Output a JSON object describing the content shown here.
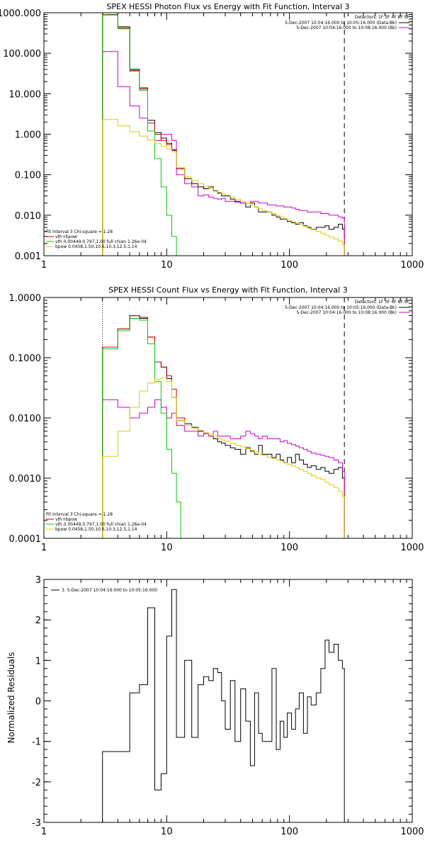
{
  "colors": {
    "data": "#000000",
    "bk": "#cc00cc",
    "total": "#cc0000",
    "vth": "#00cc00",
    "bpow": "#ddcc00",
    "dotted": "#000000"
  },
  "chart_data": [
    {
      "type": "line",
      "title": "SPEX HESSI Photon Flux vs Energy with Fit Function, Interval 3",
      "xlabel": "",
      "ylabel": "",
      "xscale": "log",
      "yscale": "log",
      "xlim": [
        1,
        1000
      ],
      "ylim": [
        0.001,
        1000
      ],
      "xticks": [
        "1",
        "10",
        "100",
        "1000"
      ],
      "yticks": [
        "0.001",
        "0.010",
        "0.100",
        "1.000",
        "10.000",
        "100.000",
        "1000.000"
      ],
      "detectors": "Detectors: 1F 3F 4F 8F 9F",
      "legend_right": [
        "5-Dec-2007 10:04:16.000 to 10:05:16.000 (Data-Bk)",
        "5-Dec-2007 10:04:16.000 to 10:08:16.000 (Bk)"
      ],
      "legend_left": [
        "Fit Interval 3   Chi-square = 1.28",
        "vth+bpow",
        "vth 0.00449,0.797,1.00  full chian 1.26e-04",
        "bpow 0.0458,1.50,10.6,10.3,12.5,1.14"
      ],
      "vline_dotted": 3,
      "vline_dashed": 280,
      "series": [
        {
          "name": "Data-Bk",
          "color": "data",
          "edges": [
            3,
            4,
            5,
            6,
            7,
            8,
            9,
            10,
            11,
            12,
            14,
            16,
            18,
            20,
            22,
            24,
            26,
            28,
            30,
            33,
            36,
            40,
            44,
            48,
            52,
            56,
            60,
            66,
            72,
            78,
            84,
            90,
            96,
            104,
            112,
            120,
            130,
            140,
            150,
            165,
            180,
            195,
            210,
            230,
            250,
            270,
            280
          ],
          "values": [
            900,
            450,
            40,
            14,
            2.2,
            1.1,
            0.8,
            0.6,
            0.4,
            0.14,
            0.08,
            0.06,
            0.05,
            0.045,
            0.05,
            0.04,
            0.035,
            0.03,
            0.03,
            0.025,
            0.022,
            0.02,
            0.016,
            0.02,
            0.016,
            0.012,
            0.012,
            0.012,
            0.01,
            0.009,
            0.008,
            0.008,
            0.007,
            0.0065,
            0.006,
            0.0065,
            0.0055,
            0.005,
            0.0045,
            0.005,
            0.005,
            0.0055,
            0.0045,
            0.005,
            0.006,
            0.0045
          ]
        },
        {
          "name": "Bk",
          "color": "bk",
          "edges": [
            3,
            4,
            5,
            6,
            7,
            8,
            9,
            10,
            11,
            12,
            14,
            16,
            18,
            20,
            22,
            24,
            26,
            28,
            30,
            33,
            36,
            40,
            44,
            48,
            52,
            56,
            60,
            66,
            72,
            78,
            84,
            90,
            96,
            104,
            112,
            120,
            130,
            140,
            150,
            165,
            180,
            195,
            210,
            230,
            250,
            270,
            280
          ],
          "values": [
            110,
            15,
            5,
            2.5,
            1.2,
            0.7,
            1,
            1,
            0.7,
            0.1,
            0.06,
            0.05,
            0.03,
            0.032,
            0.028,
            0.026,
            0.025,
            0.026,
            0.022,
            0.022,
            0.021,
            0.02,
            0.02,
            0.022,
            0.022,
            0.02,
            0.02,
            0.018,
            0.018,
            0.017,
            0.017,
            0.016,
            0.016,
            0.015,
            0.014,
            0.013,
            0.013,
            0.012,
            0.012,
            0.012,
            0.011,
            0.011,
            0.01,
            0.01,
            0.009,
            0.0085
          ]
        },
        {
          "name": "vth+bpow",
          "color": "total",
          "edges": [
            3,
            4,
            5,
            6,
            7,
            8,
            9,
            10,
            11,
            12,
            14
          ],
          "values": [
            900,
            420,
            38,
            13,
            1.9,
            1.0,
            0.7,
            0.55,
            0.42,
            0.14,
            0.08
          ]
        },
        {
          "name": "vth",
          "color": "vth",
          "edges": [
            3,
            4,
            5,
            6,
            7,
            8,
            9,
            10,
            11,
            12
          ],
          "values": [
            880,
            400,
            36,
            12,
            1.2,
            0.25,
            0.05,
            0.01,
            0.003,
            0.001
          ]
        },
        {
          "name": "bpow",
          "color": "bpow",
          "edges": [
            3,
            4,
            5,
            6,
            7,
            8,
            9,
            10,
            11,
            12,
            14,
            16,
            18,
            20,
            22,
            24,
            26,
            28,
            30,
            33,
            36,
            40,
            44,
            48,
            52,
            56,
            60,
            66,
            72,
            78,
            84,
            90,
            96,
            104,
            112,
            120,
            130,
            140,
            150,
            165,
            180,
            195,
            210,
            230,
            250,
            270,
            280
          ],
          "values": [
            2.3,
            1.6,
            1.15,
            0.9,
            0.72,
            0.6,
            0.5,
            0.43,
            0.37,
            0.15,
            0.088,
            0.07,
            0.06,
            0.052,
            0.046,
            0.041,
            0.037,
            0.034,
            0.031,
            0.028,
            0.025,
            0.022,
            0.02,
            0.018,
            0.016,
            0.0145,
            0.013,
            0.012,
            0.011,
            0.0098,
            0.009,
            0.0082,
            0.0076,
            0.007,
            0.0064,
            0.0058,
            0.0053,
            0.0048,
            0.0044,
            0.004,
            0.0036,
            0.0032,
            0.0029,
            0.0026,
            0.0023,
            0.0019
          ]
        }
      ]
    },
    {
      "type": "line",
      "title": "SPEX HESSI Count Flux vs Energy with Fit Function, Interval 3",
      "xlabel": "",
      "ylabel": "",
      "xscale": "log",
      "yscale": "log",
      "xlim": [
        1,
        1000
      ],
      "ylim": [
        0.0001,
        1
      ],
      "xticks": [
        "1",
        "10",
        "100",
        "1000"
      ],
      "yticks": [
        "0.0001",
        "0.0010",
        "0.0100",
        "0.1000",
        "1.0000"
      ],
      "detectors": "Detectors: 1F 3F 4F 8F 9F",
      "legend_right": [
        "5-Dec-2007 10:04:16.000 to 10:05:16.000 (Data-Bk)",
        "5-Dec-2007 10:04:16.000 to 10:08:16.000 (Bk)"
      ],
      "legend_left": [
        "Fit Interval 3   Chi-square = 1.28",
        "vth+bpow",
        "vth 0.00449,0.797,1.00  full chian 1.26e-04",
        "bpow 0.0458,1.50,10.6,10.3,12.5,1.14"
      ],
      "vline_dotted": 3,
      "vline_dashed": 280,
      "series": [
        {
          "name": "Data-Bk",
          "color": "data",
          "edges": [
            3,
            4,
            5,
            6,
            7,
            8,
            9,
            10,
            11,
            12,
            14,
            16,
            18,
            20,
            22,
            24,
            26,
            28,
            30,
            33,
            36,
            40,
            44,
            48,
            52,
            56,
            60,
            66,
            72,
            78,
            84,
            90,
            96,
            104,
            112,
            120,
            130,
            140,
            150,
            165,
            180,
            195,
            210,
            230,
            250,
            270,
            280
          ],
          "values": [
            0.15,
            0.3,
            0.5,
            0.45,
            0.22,
            0.085,
            0.07,
            0.045,
            0.022,
            0.009,
            0.008,
            0.007,
            0.006,
            0.0055,
            0.005,
            0.0045,
            0.004,
            0.0038,
            0.0035,
            0.0032,
            0.003,
            0.0025,
            0.0032,
            0.0028,
            0.0025,
            0.0035,
            0.0025,
            0.0025,
            0.0022,
            0.0025,
            0.002,
            0.0018,
            0.0022,
            0.0018,
            0.0025,
            0.002,
            0.0017,
            0.0015,
            0.0016,
            0.0014,
            0.0015,
            0.0013,
            0.0012,
            0.0014,
            0.0015,
            0.001
          ]
        },
        {
          "name": "Bk",
          "color": "bk",
          "edges": [
            3,
            4,
            5,
            6,
            7,
            8,
            9,
            10,
            11,
            12,
            14,
            16,
            18,
            20,
            22,
            24,
            26,
            28,
            30,
            33,
            36,
            40,
            44,
            48,
            52,
            56,
            60,
            66,
            72,
            78,
            84,
            90,
            96,
            104,
            112,
            120,
            130,
            140,
            150,
            165,
            180,
            195,
            210,
            230,
            250,
            270,
            280
          ],
          "values": [
            0.02,
            0.015,
            0.01,
            0.012,
            0.015,
            0.02,
            0.015,
            0.01,
            0.012,
            0.0075,
            0.006,
            0.006,
            0.005,
            0.0055,
            0.005,
            0.006,
            0.005,
            0.005,
            0.005,
            0.0045,
            0.0045,
            0.005,
            0.006,
            0.0055,
            0.005,
            0.0045,
            0.005,
            0.0045,
            0.0045,
            0.0045,
            0.004,
            0.0042,
            0.0038,
            0.0036,
            0.0034,
            0.0032,
            0.003,
            0.0028,
            0.0026,
            0.0025,
            0.0024,
            0.0023,
            0.0022,
            0.002,
            0.0018,
            0.0013
          ]
        },
        {
          "name": "vth+bpow",
          "color": "total",
          "edges": [
            3,
            4,
            5,
            6,
            7,
            8,
            9,
            10,
            11,
            12,
            14
          ],
          "values": [
            0.15,
            0.3,
            0.5,
            0.47,
            0.22,
            0.085,
            0.07,
            0.05,
            0.03,
            0.01,
            0.009
          ]
        },
        {
          "name": "vth",
          "color": "vth",
          "edges": [
            3,
            4,
            5,
            6,
            7,
            8,
            9,
            10,
            11,
            12,
            13,
            14
          ],
          "values": [
            0.14,
            0.28,
            0.45,
            0.42,
            0.17,
            0.04,
            0.012,
            0.003,
            0.0012,
            0.0004,
            0.0001
          ]
        },
        {
          "name": "bpow",
          "color": "bpow",
          "edges": [
            3,
            4,
            5,
            6,
            7,
            8,
            9,
            10,
            11,
            12,
            14,
            16,
            18,
            20,
            22,
            24,
            26,
            28,
            30,
            33,
            36,
            40,
            44,
            48,
            52,
            56,
            60,
            66,
            72,
            78,
            84,
            90,
            96,
            104,
            112,
            120,
            130,
            140,
            150,
            165,
            180,
            195,
            210,
            230,
            250,
            270,
            280
          ],
          "values": [
            0.0023,
            0.006,
            0.015,
            0.028,
            0.038,
            0.044,
            0.046,
            0.04,
            0.022,
            0.009,
            0.0075,
            0.0068,
            0.0062,
            0.0057,
            0.0053,
            0.0049,
            0.0046,
            0.0043,
            0.0041,
            0.0038,
            0.0035,
            0.0033,
            0.0031,
            0.0029,
            0.0027,
            0.0025,
            0.0024,
            0.0022,
            0.0021,
            0.002,
            0.0019,
            0.0018,
            0.0017,
            0.0016,
            0.0015,
            0.0014,
            0.0013,
            0.0012,
            0.0011,
            0.001,
            0.00095,
            0.00085,
            0.00078,
            0.0007,
            0.0006,
            0.0005
          ]
        }
      ]
    },
    {
      "type": "line",
      "title": "",
      "xlabel": "",
      "ylabel": "Normalized Residuals",
      "xscale": "log",
      "yscale": "linear",
      "xlim": [
        1,
        1000
      ],
      "ylim": [
        -3,
        3
      ],
      "xticks": [
        "1",
        "10",
        "100",
        "1000"
      ],
      "yticks": [
        "-3",
        "-2",
        "-1",
        "0",
        "1",
        "2",
        "3"
      ],
      "legend_left": [
        "3.  5-Dec-2007 10:04:16.000 to 10:05:16.000"
      ],
      "series": [
        {
          "name": "3.  5-Dec-2007 10:04:16.000 to 10:05:16.000",
          "color": "data",
          "edges": [
            3,
            4,
            5,
            6,
            7,
            8,
            9,
            10,
            11,
            12,
            14,
            16,
            18,
            20,
            22,
            24,
            26,
            28,
            30,
            33,
            36,
            40,
            44,
            48,
            52,
            56,
            60,
            66,
            72,
            78,
            84,
            90,
            96,
            104,
            112,
            120,
            130,
            140,
            150,
            165,
            180,
            195,
            210,
            230,
            250,
            270,
            280
          ],
          "values": [
            -1.25,
            -1.25,
            0.2,
            0.4,
            2.3,
            -2.2,
            -1.8,
            1.6,
            2.75,
            -0.9,
            1.0,
            -0.9,
            0.4,
            0.6,
            0.5,
            0.8,
            0.7,
            0.0,
            -0.7,
            0.5,
            -1.0,
            0.3,
            -0.5,
            -1.6,
            0.2,
            -0.8,
            -1.0,
            -1.0,
            0.8,
            -1.2,
            -0.5,
            -0.9,
            -0.3,
            -0.7,
            -0.2,
            0.2,
            -0.8,
            0.1,
            -0.1,
            0.2,
            0.8,
            1.5,
            1.2,
            1.4,
            1.0,
            0.8
          ]
        }
      ]
    }
  ]
}
